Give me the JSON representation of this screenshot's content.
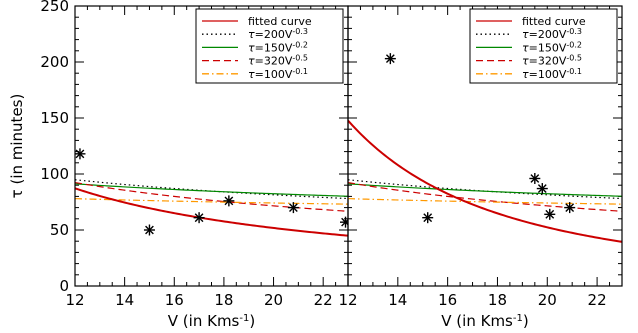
{
  "chart_data": [
    {
      "type": "line",
      "panel": "left",
      "xlabel": "V (in Kms",
      "xlabel_sup": "-1",
      "xlabel_close": ")",
      "ylabel": "τ (in minutes)",
      "xlim": [
        12,
        23
      ],
      "ylim": [
        0,
        250
      ],
      "xticks": [
        12,
        14,
        16,
        18,
        20,
        22
      ],
      "yticks": [
        0,
        50,
        100,
        150,
        200,
        250
      ],
      "legend_position": "top-right",
      "series": [
        {
          "name": "fitted curve",
          "a": 1100,
          "b": -1.02,
          "color": "#cc0000",
          "style": "solid"
        },
        {
          "name": "τ=200V^-0.3",
          "a": 200,
          "b": -0.3,
          "color": "#000000",
          "style": "dotted"
        },
        {
          "name": "τ=150V^-0.2",
          "a": 150,
          "b": -0.2,
          "color": "#008800",
          "style": "solid"
        },
        {
          "name": "τ=320V^-0.5",
          "a": 320,
          "b": -0.5,
          "color": "#cc0000",
          "style": "dashed"
        },
        {
          "name": "τ=100V^-0.1",
          "a": 100,
          "b": -0.1,
          "color": "#ff9900",
          "style": "dashdot"
        }
      ],
      "points": [
        [
          12.2,
          118
        ],
        [
          15.0,
          50
        ],
        [
          17.0,
          61
        ],
        [
          18.2,
          76
        ],
        [
          20.8,
          70
        ],
        [
          22.9,
          57
        ]
      ]
    },
    {
      "type": "line",
      "panel": "right",
      "xlabel": "V (in Kms",
      "xlabel_sup": "-1",
      "xlabel_close": ")",
      "ylabel": "",
      "xlim": [
        12,
        23
      ],
      "ylim": [
        0,
        250
      ],
      "xticks": [
        12,
        14,
        16,
        18,
        20,
        22
      ],
      "yticks": [],
      "legend_position": "top-right",
      "series": [
        {
          "name": "fitted curve",
          "a": 22920,
          "b": -2.03,
          "color": "#cc0000",
          "style": "solid"
        },
        {
          "name": "τ=200V^-0.3",
          "a": 200,
          "b": -0.3,
          "color": "#000000",
          "style": "dotted"
        },
        {
          "name": "τ=150V^-0.2",
          "a": 150,
          "b": -0.2,
          "color": "#008800",
          "style": "solid"
        },
        {
          "name": "τ=320V^-0.5",
          "a": 320,
          "b": -0.5,
          "color": "#cc0000",
          "style": "dashed"
        },
        {
          "name": "τ=100V^-0.1",
          "a": 100,
          "b": -0.1,
          "color": "#ff9900",
          "style": "dashdot"
        }
      ],
      "points": [
        [
          13.7,
          203
        ],
        [
          15.2,
          61
        ],
        [
          19.5,
          96
        ],
        [
          19.8,
          87
        ],
        [
          20.1,
          64
        ],
        [
          20.9,
          70
        ]
      ]
    }
  ],
  "legend_labels": {
    "fitted": "fitted curve",
    "tau": "τ",
    "eq1": "=200V",
    "sup1": "-0.3",
    "eq2": "=150V",
    "sup2": "-0.2",
    "eq3": "=320V",
    "sup3": "-0.5",
    "eq4": "=100V",
    "sup4": "-0.1"
  }
}
